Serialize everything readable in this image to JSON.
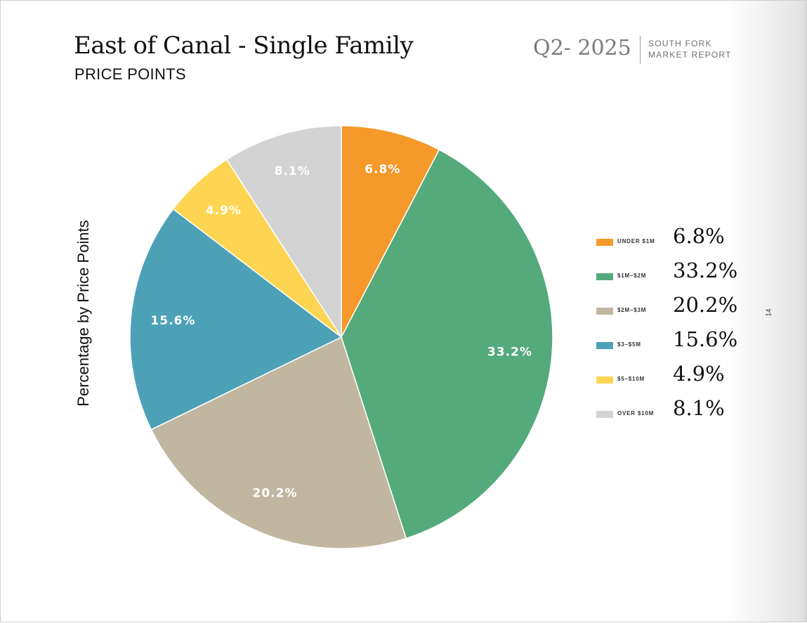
{
  "header": {
    "title": "East of Canal - Single Family",
    "subtitle": "PRICE POINTS",
    "quarter": "Q2- 2025",
    "report_line1": "SOUTH FORK",
    "report_line2": "MARKET REPORT"
  },
  "page_number": "14",
  "colors": {
    "under_1m": "#F5992A",
    "1m_2m": "#55AA7B",
    "2m_3m": "#C1B7A0",
    "3m_5m": "#4DA1B7",
    "5m_10m": "#FDD552",
    "over_10m": "#D3D3D3"
  },
  "chart_data": {
    "type": "pie",
    "title": "East of Canal - Single Family",
    "ylabel": "Percentage by Price Points",
    "legend_position": "right",
    "slices": [
      {
        "label": "UNDER $1M",
        "value": 6.8,
        "display": "6.8%",
        "color": "#F5992A"
      },
      {
        "label": "$1M–$2M",
        "value": 33.2,
        "display": "33.2%",
        "color": "#55AA7B"
      },
      {
        "label": "$2M–$3M",
        "value": 20.2,
        "display": "20.2%",
        "color": "#C1B7A0"
      },
      {
        "label": "$3–$5M",
        "value": 15.6,
        "display": "15.6%",
        "color": "#4DA1B7"
      },
      {
        "label": "$5–$10M",
        "value": 4.9,
        "display": "4.9%",
        "color": "#FDD552"
      },
      {
        "label": "OVER $10M",
        "value": 8.1,
        "display": "8.1%",
        "color": "#D3D3D3"
      }
    ]
  }
}
